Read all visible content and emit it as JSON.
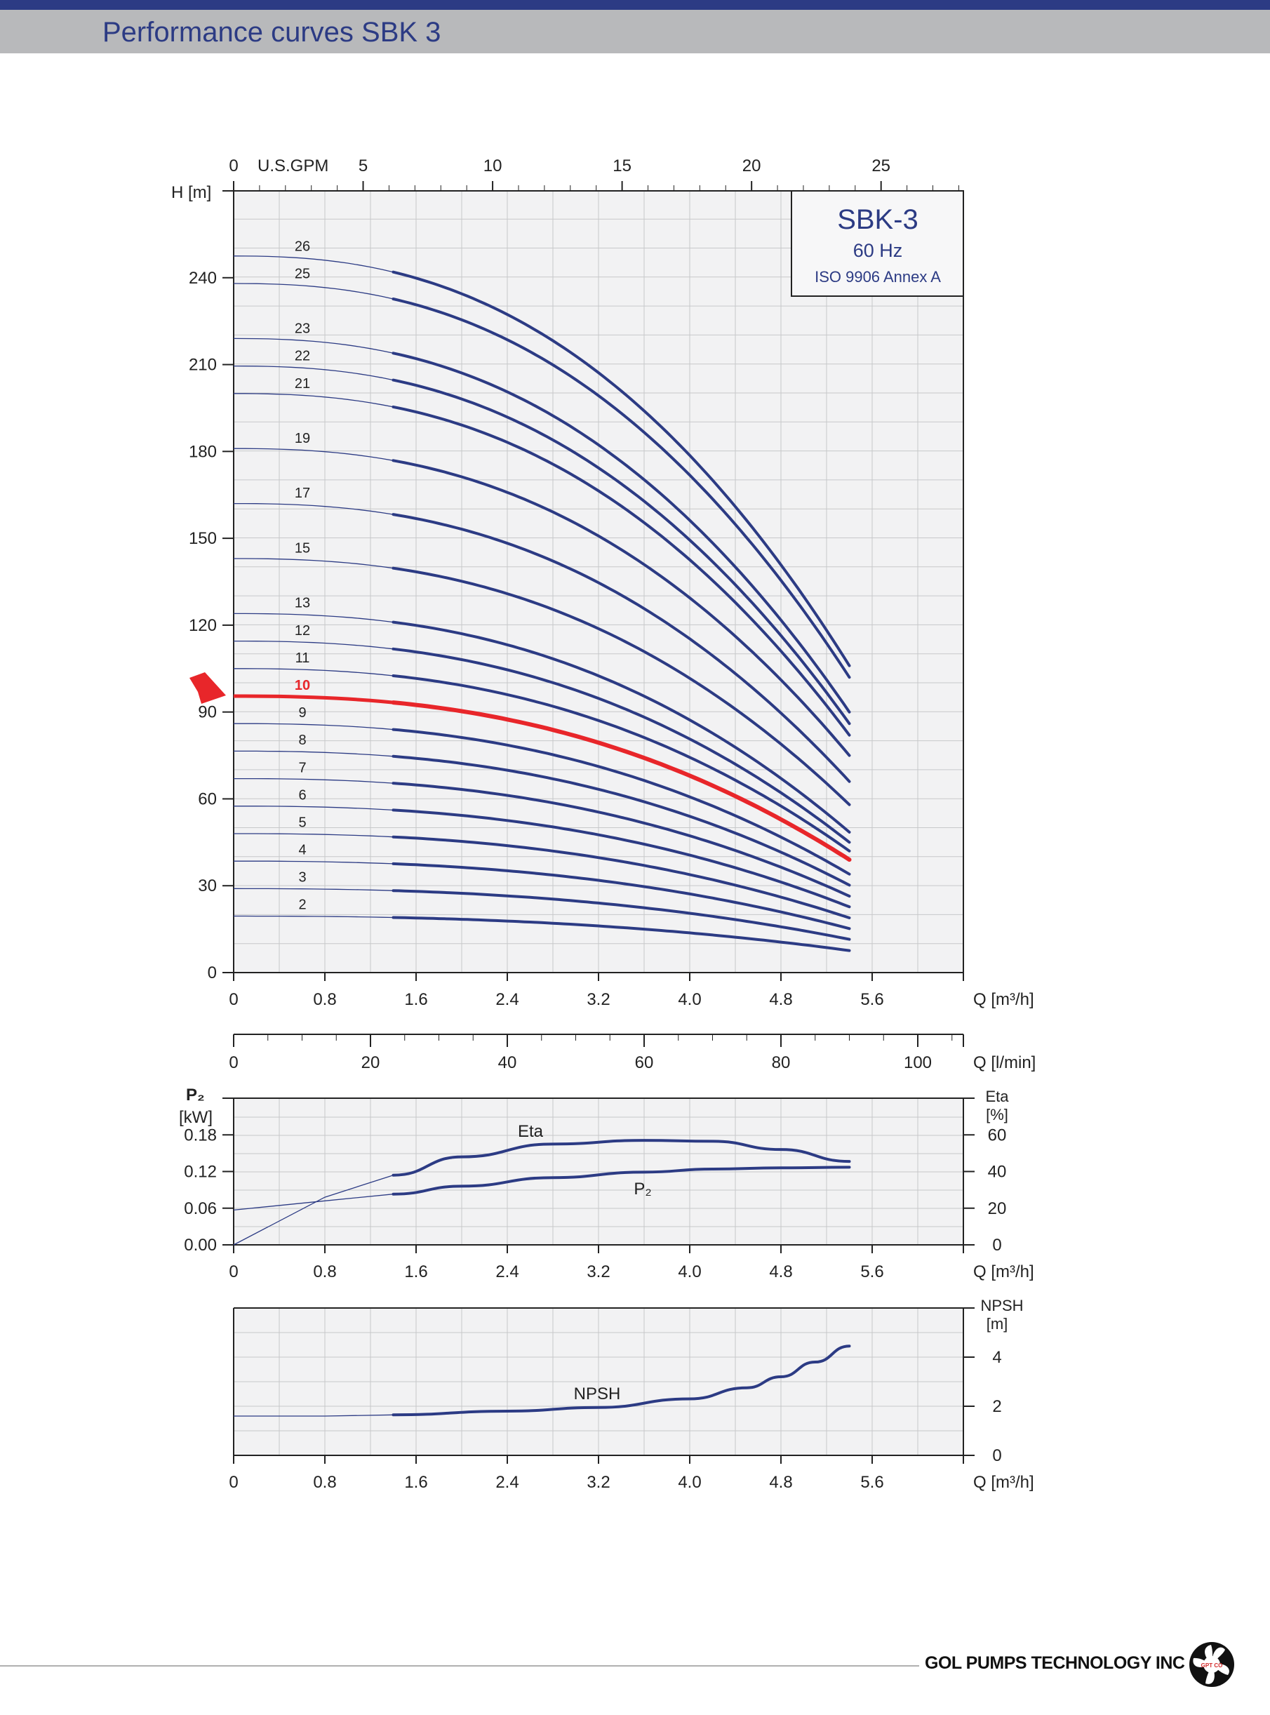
{
  "page": {
    "title": "Performance curves SBK 3",
    "company": "GOL PUMPS TECHNOLOGY INC",
    "logo_text": "GPT CO"
  },
  "colors": {
    "curve": "#2c3b84",
    "highlight": "#e8262a",
    "grid": "#c7c8ca",
    "plot_bg": "#f2f2f3"
  },
  "chart_data": [
    {
      "type": "line",
      "id": "head",
      "ylabel": "H [m]",
      "xlabel": "Q [m³/h]",
      "top_axis": {
        "label": "U.S.GPM",
        "ticks": [
          0,
          5,
          10,
          15,
          20,
          25
        ]
      },
      "x_ticks": [
        0,
        0.8,
        1.6,
        2.4,
        3.2,
        4.0,
        4.8,
        5.6
      ],
      "xlim": [
        0,
        6.4
      ],
      "ylim": [
        0,
        270
      ],
      "y_ticks": [
        0,
        30,
        60,
        90,
        120,
        150,
        180,
        210,
        240
      ],
      "grid": true,
      "legend_box": {
        "title": "SBK-3",
        "freq": "60 Hz",
        "standard": "ISO 9906 Annex A"
      },
      "operating_range": [
        1.4,
        5.4
      ],
      "highlight": "10",
      "series": [
        {
          "name": "2",
          "shutoff": 19.5,
          "end": 7.6
        },
        {
          "name": "3",
          "shutoff": 29,
          "end": 11.5
        },
        {
          "name": "4",
          "shutoff": 38.5,
          "end": 15.2
        },
        {
          "name": "5",
          "shutoff": 48,
          "end": 18.9
        },
        {
          "name": "6",
          "shutoff": 57.5,
          "end": 22.7
        },
        {
          "name": "7",
          "shutoff": 67,
          "end": 26.4
        },
        {
          "name": "8",
          "shutoff": 76.5,
          "end": 30.2
        },
        {
          "name": "9",
          "shutoff": 86,
          "end": 34
        },
        {
          "name": "10",
          "shutoff": 95.5,
          "end": 39
        },
        {
          "name": "11",
          "shutoff": 105,
          "end": 42
        },
        {
          "name": "12",
          "shutoff": 114.5,
          "end": 45
        },
        {
          "name": "13",
          "shutoff": 124,
          "end": 48.5
        },
        {
          "name": "15",
          "shutoff": 143,
          "end": 58
        },
        {
          "name": "17",
          "shutoff": 162,
          "end": 66
        },
        {
          "name": "19",
          "shutoff": 181,
          "end": 75
        },
        {
          "name": "21",
          "shutoff": 200,
          "end": 82
        },
        {
          "name": "22",
          "shutoff": 209.5,
          "end": 86
        },
        {
          "name": "23",
          "shutoff": 219,
          "end": 90
        },
        {
          "name": "25",
          "shutoff": 238,
          "end": 102
        },
        {
          "name": "26",
          "shutoff": 247.5,
          "end": 106
        }
      ]
    },
    {
      "type": "line",
      "id": "power_eta",
      "top_axis": {
        "label": "Q [l/min]",
        "ticks": [
          0,
          20,
          40,
          60,
          80,
          100
        ]
      },
      "ylabel_left": "P₂ [kW]",
      "ylabel_right": "Eta [%]",
      "xlabel": "Q [m³/h]",
      "x_ticks": [
        0,
        0.8,
        1.6,
        2.4,
        3.2,
        4.0,
        4.8,
        5.6
      ],
      "y_ticks_left": [
        "0.00",
        "0.06",
        "0.12",
        "0.18"
      ],
      "y_ticks_right": [
        0,
        20,
        40,
        60
      ],
      "ylim_left": [
        0,
        0.24
      ],
      "ylim_right": [
        0,
        80
      ],
      "series": [
        {
          "name": "Eta",
          "x": [
            0,
            0.8,
            1.4,
            2.0,
            2.8,
            3.6,
            4.2,
            4.8,
            5.4
          ],
          "y": [
            0,
            26,
            38,
            48,
            55,
            57,
            56.5,
            52,
            45.5
          ]
        },
        {
          "name": "P₂",
          "x": [
            0,
            0.8,
            1.4,
            2.0,
            2.8,
            3.6,
            4.2,
            4.8,
            5.4
          ],
          "y": [
            0.057,
            0.072,
            0.083,
            0.096,
            0.11,
            0.119,
            0.124,
            0.126,
            0.127
          ]
        }
      ]
    },
    {
      "type": "line",
      "id": "npsh",
      "ylabel_right": "NPSH [m]",
      "xlabel": "Q [m³/h]",
      "x_ticks": [
        0,
        0.8,
        1.6,
        2.4,
        3.2,
        4.0,
        4.8,
        5.6
      ],
      "y_ticks_right": [
        0,
        2,
        4
      ],
      "ylim": [
        0,
        6
      ],
      "series": [
        {
          "name": "NPSH",
          "x": [
            0,
            0.8,
            1.4,
            2.4,
            3.2,
            4.0,
            4.5,
            4.8,
            5.1,
            5.4
          ],
          "y": [
            1.6,
            1.6,
            1.65,
            1.8,
            1.95,
            2.3,
            2.75,
            3.2,
            3.8,
            4.45
          ]
        }
      ]
    }
  ]
}
